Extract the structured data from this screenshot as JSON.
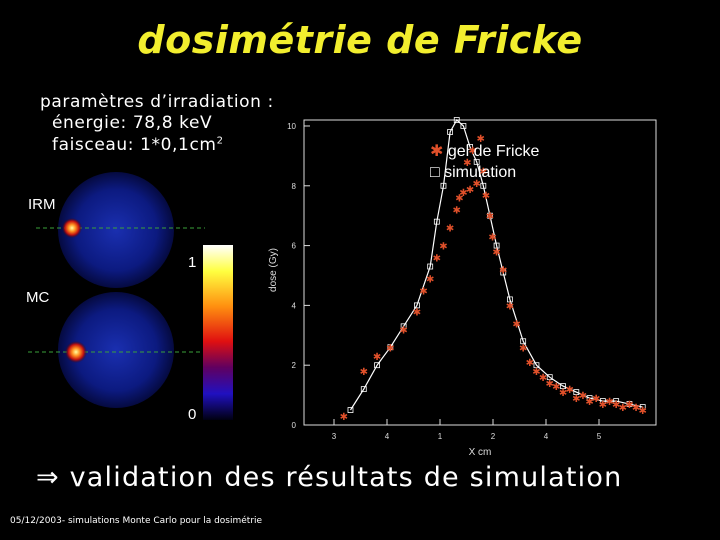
{
  "title": "dosimétrie de Fricke",
  "params": {
    "heading": "paramètres d’irradiation :",
    "energy": "énergie: 78,8 keV",
    "beam_prefix": "faisceau: 1*0,1cm",
    "beam_sup": "2"
  },
  "images": {
    "irm_label": "IRM",
    "mc_label": "MC",
    "scale_max": "1",
    "scale_min": "0"
  },
  "chart_data": {
    "type": "scatter",
    "xlabel": "X cm",
    "ylabel": "dose (Gy)",
    "xlim": [
      2.55,
      5.2
    ],
    "ylim": [
      0,
      10.2
    ],
    "xticks": [
      "3",
      "4",
      "1",
      "2",
      "4",
      "5"
    ],
    "yticks": [
      "0",
      "2",
      "4",
      "6",
      "8",
      "10"
    ],
    "legend_position": "top-right",
    "series": [
      {
        "name": "gel de Fricke",
        "marker": "asterisk",
        "color": "#e0502a",
        "x": [
          2.85,
          3.0,
          3.1,
          3.2,
          3.3,
          3.4,
          3.45,
          3.5,
          3.55,
          3.6,
          3.65,
          3.7,
          3.72,
          3.75,
          3.78,
          3.8,
          3.82,
          3.85,
          3.88,
          3.9,
          3.92,
          3.95,
          3.97,
          4.0,
          4.05,
          4.1,
          4.15,
          4.2,
          4.25,
          4.3,
          4.35,
          4.4,
          4.45,
          4.5,
          4.55,
          4.6,
          4.65,
          4.7,
          4.75,
          4.8,
          4.85,
          4.9,
          4.95,
          5.0,
          5.05,
          5.1
        ],
        "y": [
          0.3,
          1.8,
          2.3,
          2.6,
          3.2,
          3.8,
          4.5,
          4.9,
          5.6,
          6.0,
          6.6,
          7.2,
          7.6,
          7.8,
          8.8,
          7.9,
          9.2,
          8.1,
          9.6,
          8.5,
          7.7,
          7.0,
          6.3,
          5.8,
          5.2,
          4.0,
          3.4,
          2.6,
          2.1,
          1.8,
          1.6,
          1.4,
          1.3,
          1.1,
          1.2,
          0.9,
          1.0,
          0.8,
          0.9,
          0.7,
          0.8,
          0.7,
          0.6,
          0.7,
          0.6,
          0.5
        ]
      },
      {
        "name": "simulation",
        "marker": "square",
        "color": "#ffffff",
        "x": [
          2.9,
          3.0,
          3.1,
          3.2,
          3.3,
          3.4,
          3.5,
          3.55,
          3.6,
          3.65,
          3.7,
          3.75,
          3.8,
          3.85,
          3.9,
          3.95,
          4.0,
          4.05,
          4.1,
          4.2,
          4.3,
          4.4,
          4.5,
          4.6,
          4.7,
          4.8,
          4.9,
          5.0,
          5.1
        ],
        "y": [
          0.5,
          1.2,
          2.0,
          2.6,
          3.3,
          4.0,
          5.3,
          6.8,
          8.0,
          9.8,
          10.2,
          10.0,
          9.3,
          8.8,
          8.0,
          7.0,
          6.0,
          5.1,
          4.2,
          2.8,
          2.0,
          1.6,
          1.3,
          1.1,
          0.9,
          0.8,
          0.8,
          0.7,
          0.6
        ]
      }
    ]
  },
  "conclusion": {
    "arrow": "⇒",
    "text": "validation des résultats de simulation"
  },
  "footer": "05/12/2003- simulations Monte Carlo pour la dosimétrie"
}
